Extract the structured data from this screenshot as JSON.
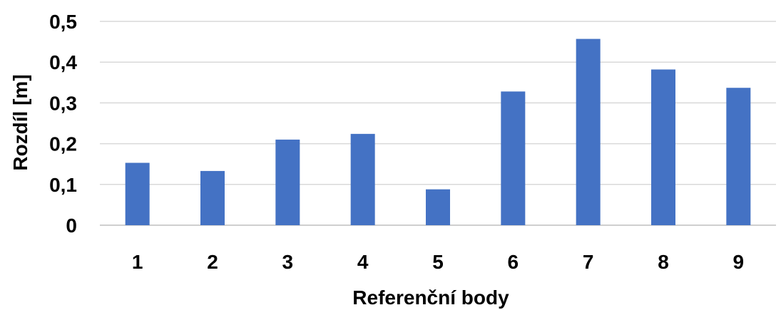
{
  "chart_data": {
    "type": "bar",
    "title": "",
    "xlabel": "Referenční body",
    "ylabel": "Rozdíl [m]",
    "categories": [
      "1",
      "2",
      "3",
      "4",
      "5",
      "6",
      "7",
      "8",
      "9"
    ],
    "values": [
      0.153,
      0.133,
      0.21,
      0.224,
      0.088,
      0.328,
      0.457,
      0.382,
      0.337
    ],
    "ylim": [
      0,
      0.5
    ],
    "yticks": [
      0,
      0.1,
      0.2,
      0.3,
      0.4,
      0.5
    ],
    "ytick_labels": [
      "0",
      "0,1",
      "0,2",
      "0,3",
      "0,4",
      "0,5"
    ],
    "grid": true,
    "legend": "none",
    "bar_color": "#4472c4"
  }
}
